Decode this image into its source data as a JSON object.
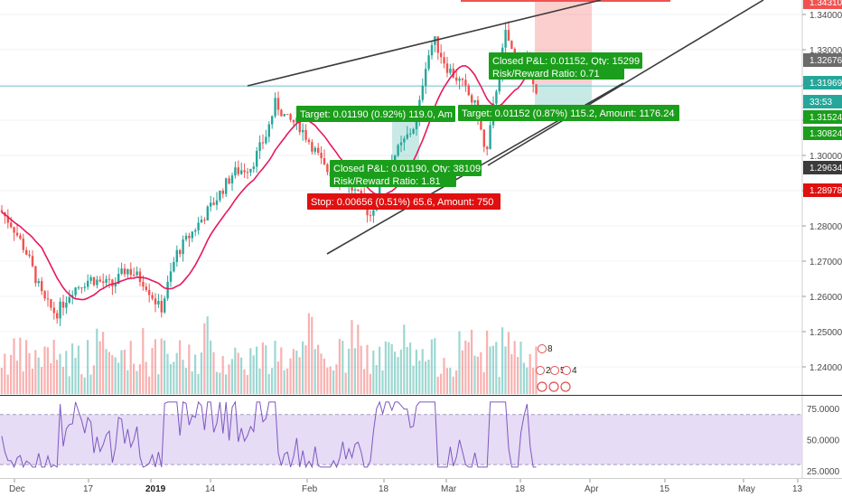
{
  "chart_data": [
    {
      "type": "candlestick",
      "title": "",
      "colors": {
        "up": "#26a69a",
        "down": "#ef5350",
        "ma": "#e8185a",
        "trendline": "#3b3b3b",
        "hline": "#7fc4c8"
      },
      "y_range": [
        1.23,
        1.345
      ],
      "y_ticks": [
        "1.34000",
        "1.33000",
        "1.32000",
        "1.31000",
        "1.30000",
        "1.29000",
        "1.28000",
        "1.27000",
        "1.26000",
        "1.25000",
        "1.24000"
      ],
      "x_labels": [
        {
          "label": "Dec",
          "bold": false
        },
        {
          "label": "17",
          "bold": false
        },
        {
          "label": "2019",
          "bold": true
        },
        {
          "label": "14",
          "bold": false
        },
        {
          "label": "Feb",
          "bold": false
        },
        {
          "label": "18",
          "bold": false
        },
        {
          "label": "Mar",
          "bold": false
        },
        {
          "label": "18",
          "bold": false
        },
        {
          "label": "Apr",
          "bold": false
        },
        {
          "label": "15",
          "bold": false
        },
        {
          "label": "May",
          "bold": false
        },
        {
          "label": "13",
          "bold": false
        }
      ],
      "price_tags": [
        {
          "value": "1.34310",
          "color": "#ef5350"
        },
        {
          "value": "1.32676",
          "color": "#6b6b6b"
        },
        {
          "value": "1.31969",
          "color": "#26a69a"
        },
        {
          "value": "33:53",
          "color": "#26a69a"
        },
        {
          "value": "1.31524",
          "color": "#1b9e1b"
        },
        {
          "value": "1.30824",
          "color": "#1b9e1b"
        },
        {
          "value": "1.29634",
          "color": "#3b3b3b"
        },
        {
          "value": "1.28978",
          "color": "#e01010"
        }
      ],
      "horizontal_line": 1.31969,
      "annotations": [
        {
          "text": "Closed P&L: 0.01152, Qty: 15299",
          "color": "#1b9e1b"
        },
        {
          "text": "Risk/Reward Ratio: 0.71",
          "color": "#1b9e1b"
        },
        {
          "text": "Target: 0.01190 (0.92%) 119.0, Am",
          "color": "#1b9e1b"
        },
        {
          "text": "Target: 0.01152 (0.87%) 115.2, Amount: 1176.24",
          "color": "#1b9e1b"
        },
        {
          "text": "Closed P&L: 0.01190, Qty: 38109",
          "color": "#1b9e1b"
        },
        {
          "text": "Risk/Reward Ratio: 1.81",
          "color": "#1b9e1b"
        },
        {
          "text": "Stop: 0.00656 (0.51%) 65.6, Amount: 750",
          "color": "#e01010"
        }
      ],
      "event_markers": [
        "8",
        "2",
        "5",
        "4"
      ]
    },
    {
      "type": "line",
      "name": "",
      "color": "#7e57c2",
      "y_range": [
        20,
        85
      ],
      "band": [
        30,
        70
      ],
      "y_ticks": [
        "75.0000",
        "50.0000",
        "25.0000"
      ]
    }
  ]
}
